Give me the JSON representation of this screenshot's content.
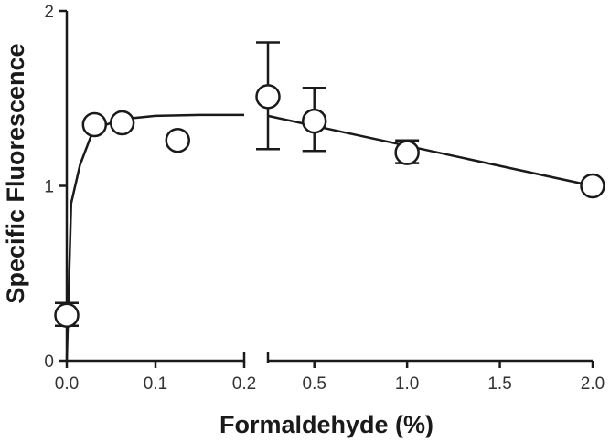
{
  "chart_data": {
    "type": "scatter",
    "title": "",
    "xlabel": "Formaldehyde (%)",
    "ylabel": "Specific Fluorescence",
    "ylim": [
      0,
      2
    ],
    "grid": false,
    "legend": "none",
    "x_axis_broken": true,
    "xlim_left": [
      0,
      0.2
    ],
    "xlim_right": [
      0.25,
      2.0
    ],
    "x_ticks_left": [
      "0.0",
      "0.1",
      "0.2"
    ],
    "x_ticks_right": [
      "0.5",
      "1.0",
      "1.5",
      "2.0"
    ],
    "y_ticks": [
      "0",
      "1",
      "2"
    ],
    "points": [
      {
        "x": 0.0,
        "y": 0.26,
        "err_low": 0.2,
        "err_high": 0.33
      },
      {
        "x": 0.03125,
        "y": 1.35
      },
      {
        "x": 0.0625,
        "y": 1.36
      },
      {
        "x": 0.125,
        "y": 1.26
      },
      {
        "x": 0.25,
        "y": 1.51,
        "err_low": 1.21,
        "err_high": 1.82
      },
      {
        "x": 0.5,
        "y": 1.37,
        "err_low": 1.2,
        "err_high": 1.56
      },
      {
        "x": 1.0,
        "y": 1.19,
        "err_low": 1.13,
        "err_high": 1.26
      },
      {
        "x": 2.0,
        "y": 1.0
      }
    ],
    "fit_left": {
      "x": [
        0,
        0.005,
        0.015,
        0.03,
        0.06,
        0.1,
        0.15,
        0.2
      ],
      "y": [
        0,
        0.9,
        1.12,
        1.32,
        1.38,
        1.4,
        1.405,
        1.405
      ]
    },
    "fit_right": {
      "x": [
        0.25,
        2.0
      ],
      "y": [
        1.4,
        1.0
      ]
    }
  }
}
